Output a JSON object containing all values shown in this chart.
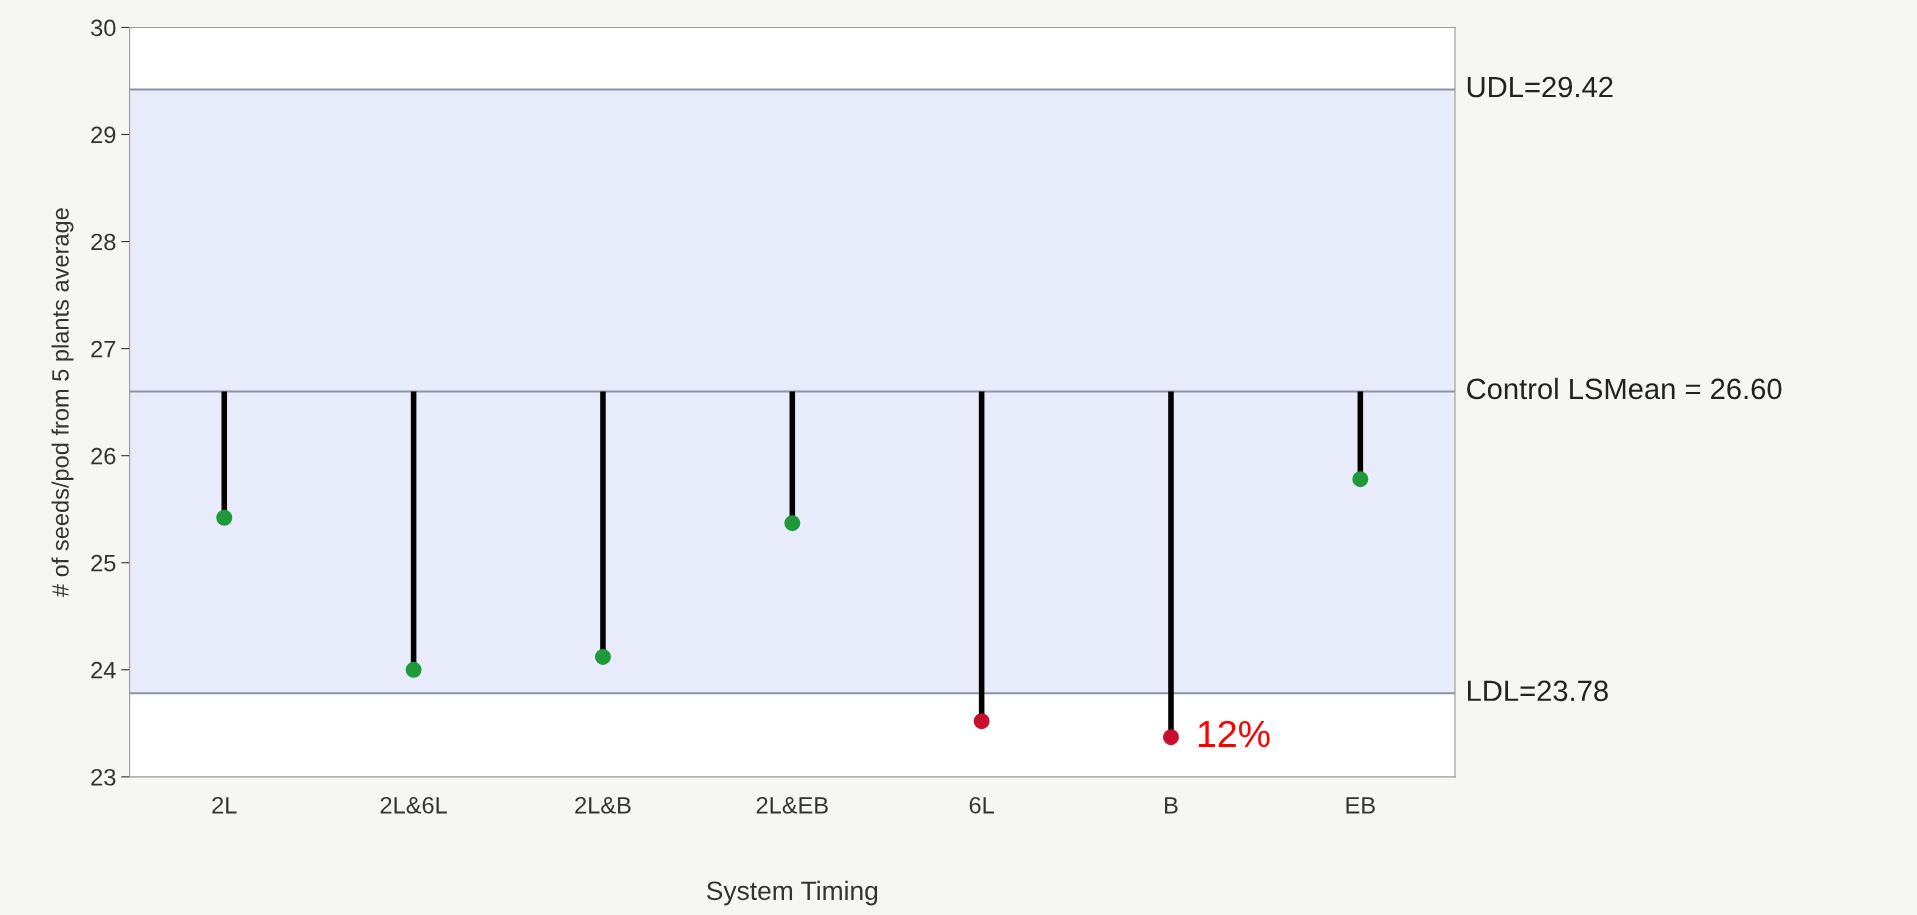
{
  "chart_data": {
    "type": "lollipop",
    "xlabel": "System Timing",
    "ylabel": "# of seeds/pod from 5 plants average",
    "categories": [
      "2L",
      "2L&6L",
      "2L&B",
      "2L&EB",
      "6L",
      "B",
      "EB"
    ],
    "values": [
      25.42,
      24.0,
      24.12,
      25.37,
      23.52,
      23.37,
      25.78
    ],
    "errors": [
      [
        25.42,
        26.6
      ],
      [
        24.0,
        26.6
      ],
      [
        24.12,
        26.6
      ],
      [
        25.37,
        26.6
      ],
      [
        23.52,
        26.6
      ],
      [
        23.37,
        26.6
      ],
      [
        25.78,
        26.6
      ]
    ],
    "colors": [
      "#1f9a3a",
      "#1f9a3a",
      "#1f9a3a",
      "#1f9a3a",
      "#c8102e",
      "#c8102e",
      "#1f9a3a"
    ],
    "ylim": [
      23,
      30
    ],
    "yticks": [
      23,
      24,
      25,
      26,
      27,
      28,
      29,
      30
    ],
    "bands": [
      {
        "axis": "y",
        "from": 23.78,
        "to": 29.42,
        "color": "#e8ecfa"
      }
    ],
    "ref_lines": [
      {
        "axis": "y",
        "value": 29.42,
        "label": "UDL=29.42",
        "color": "#8a94a8"
      },
      {
        "axis": "y",
        "value": 26.6,
        "label": "Control LSMean = 26.60",
        "color": "#8a94a8"
      },
      {
        "axis": "y",
        "value": 23.78,
        "label": "LDL=23.78",
        "color": "#8a94a8"
      }
    ],
    "annotations": [
      {
        "text": "12%",
        "x": "B",
        "y": 23.37
      }
    ],
    "grid": false,
    "legend": false
  }
}
